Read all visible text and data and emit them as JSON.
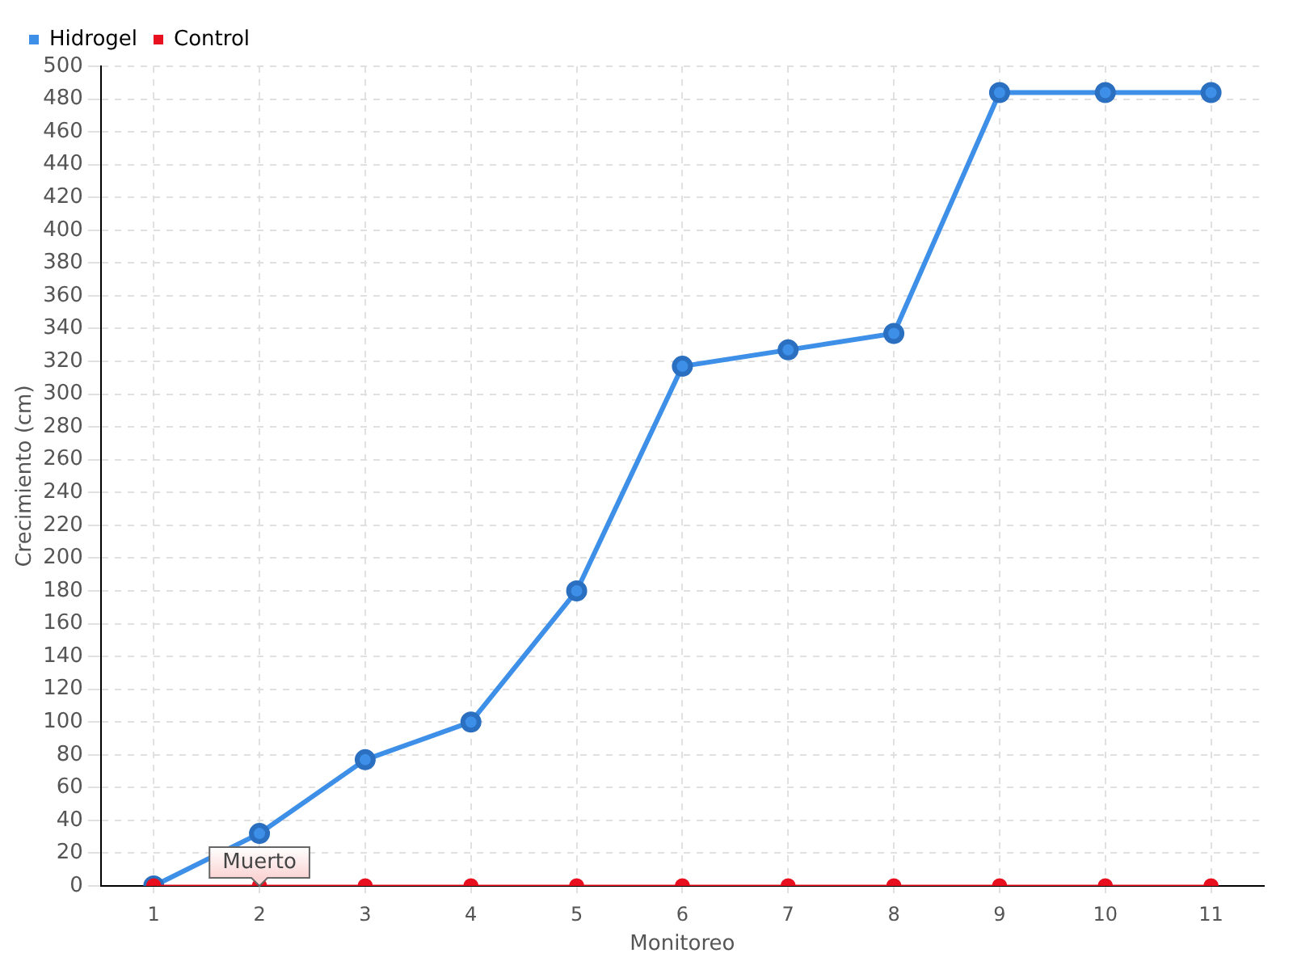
{
  "chart_data": {
    "type": "line",
    "xlabel": "Monitoreo",
    "ylabel": "Crecimiento (cm)",
    "categories": [
      "1",
      "2",
      "3",
      "4",
      "5",
      "6",
      "7",
      "8",
      "9",
      "10",
      "11"
    ],
    "series": [
      {
        "name": "Hidrogel",
        "color": "#3d8fe8",
        "values": [
          0,
          32,
          77,
          100,
          180,
          317,
          327,
          337,
          484,
          484,
          484
        ]
      },
      {
        "name": "Control",
        "color": "#e8101f",
        "values": [
          0,
          0,
          0,
          0,
          0,
          0,
          0,
          0,
          0,
          0,
          0
        ]
      }
    ],
    "ylim": [
      0,
      500
    ],
    "yticks": [
      0,
      20,
      40,
      60,
      80,
      100,
      120,
      140,
      160,
      180,
      200,
      220,
      240,
      260,
      280,
      300,
      320,
      340,
      360,
      380,
      400,
      420,
      440,
      460,
      480,
      500
    ],
    "grid": true,
    "legend": "top left",
    "marker": "circle",
    "line_style": "solid",
    "annotations": [
      {
        "text": "Muerto",
        "x": "2",
        "y": 0
      }
    ]
  }
}
